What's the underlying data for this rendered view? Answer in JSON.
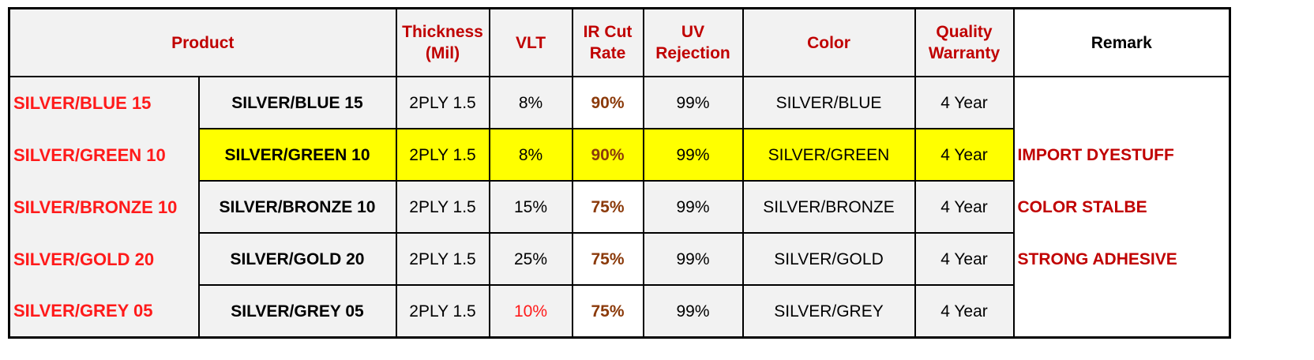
{
  "headers": {
    "product": "Product",
    "thickness": "Thickness (Mil)",
    "vlt": "VLT",
    "ir_cut": "IR Cut Rate",
    "uv": "UV Rejection",
    "color": "Color",
    "warranty": "Quality Warranty",
    "remark": "Remark"
  },
  "rows": [
    {
      "series": "SILVER/BLUE 15",
      "model": "SILVER/BLUE 15",
      "thickness": "2PLY 1.5",
      "vlt": "8%",
      "ir": "90%",
      "uv": "99%",
      "color": "SILVER/BLUE",
      "warranty": "4 Year",
      "remark": ""
    },
    {
      "series": "SILVER/GREEN 10",
      "model": "SILVER/GREEN 10",
      "thickness": "2PLY 1.5",
      "vlt": "8%",
      "ir": "90%",
      "uv": "99%",
      "color": "SILVER/GREEN",
      "warranty": "4 Year",
      "remark": "IMPORT DYESTUFF"
    },
    {
      "series": "SILVER/BRONZE 10",
      "model": "SILVER/BRONZE 10",
      "thickness": "2PLY 1.5",
      "vlt": "15%",
      "ir": "75%",
      "uv": "99%",
      "color": "SILVER/BRONZE",
      "warranty": "4 Year",
      "remark": "COLOR STALBE"
    },
    {
      "series": "SILVER/GOLD 20",
      "model": "SILVER/GOLD 20",
      "thickness": "2PLY 1.5",
      "vlt": "25%",
      "ir": "75%",
      "uv": "99%",
      "color": "SILVER/GOLD",
      "warranty": "4 Year",
      "remark": "STRONG ADHESIVE"
    },
    {
      "series": "SILVER/GREY 05",
      "model": "SILVER/GREY 05",
      "thickness": "2PLY 1.5",
      "vlt": "10%",
      "ir": "75%",
      "uv": "99%",
      "color": "SILVER/GREY",
      "warranty": "4 Year",
      "remark": ""
    }
  ],
  "highlighted_row": "SILVER/GREEN 10",
  "colors": {
    "header_red": "#c00000",
    "series_red": "#ff1a1a",
    "ir_brown": "#8b3a0a",
    "highlight_yellow": "#ffff00",
    "cell_gray": "#f2f2f2"
  }
}
